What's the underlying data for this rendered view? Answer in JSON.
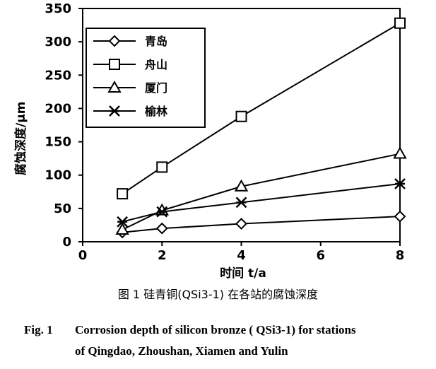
{
  "chart_data": {
    "type": "line",
    "x_label": "时间 t/a",
    "y_label": "腐蚀深度/μm",
    "x_ticks": [
      "0",
      "2",
      "4",
      "6",
      "8"
    ],
    "y_ticks": [
      "0",
      "50",
      "100",
      "150",
      "200",
      "250",
      "300",
      "350"
    ],
    "xlim": [
      0,
      8
    ],
    "ylim": [
      0,
      350
    ],
    "grid": false,
    "legend_position": "top-left",
    "series": [
      {
        "name": "青岛",
        "marker": "diamond",
        "x": [
          1,
          2,
          4,
          8
        ],
        "y": [
          14,
          20,
          27,
          38
        ]
      },
      {
        "name": "舟山",
        "marker": "square",
        "x": [
          1,
          2,
          4,
          8
        ],
        "y": [
          72,
          112,
          188,
          328
        ]
      },
      {
        "name": "厦门",
        "marker": "triangle",
        "x": [
          1,
          2,
          4,
          8
        ],
        "y": [
          18,
          47,
          83,
          132
        ]
      },
      {
        "name": "榆林",
        "marker": "asterisk",
        "x": [
          1,
          2,
          4,
          8
        ],
        "y": [
          30,
          45,
          59,
          87
        ]
      }
    ]
  },
  "caption": {
    "cn": "图 1   硅青铜(QSi3-1) 在各站的腐蚀深度",
    "en_label": "Fig. 1",
    "en_line1": "Corrosion depth of silicon bronze ( QSi3-1)  for stations",
    "en_line2": "of Qingdao, Zhoushan, Xiamen and Yulin"
  }
}
